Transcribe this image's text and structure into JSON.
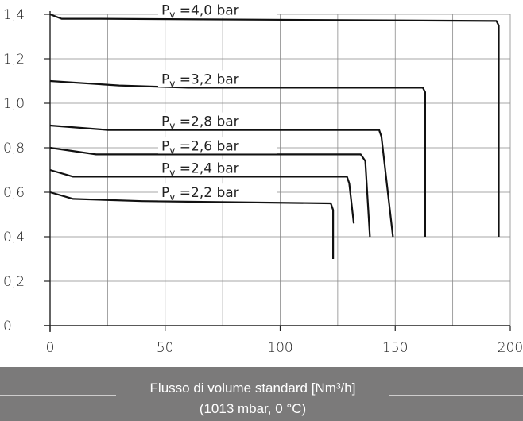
{
  "chart_data": {
    "type": "line",
    "xlabel": "Flusso di volume standard [Nm³/h]",
    "xlabel_sub": "(1013 mbar, 0 °C)",
    "ylabel": "",
    "xlim": [
      0,
      200
    ],
    "ylim": [
      0,
      1.4
    ],
    "x_ticks": [
      "0",
      "50",
      "100",
      "150",
      "200"
    ],
    "y_ticks": [
      "0",
      "0,2",
      "0,4",
      "0,6",
      "0,8",
      "1,0",
      "1,2",
      "1,4"
    ],
    "grid": true,
    "series": [
      {
        "name": "Pv =4,0 bar",
        "label": [
          "P",
          "v",
          " =4,0  bar"
        ],
        "points": [
          [
            0,
            1.4
          ],
          [
            5,
            1.38
          ],
          [
            20,
            1.38
          ],
          [
            194,
            1.37
          ],
          [
            195,
            1.35
          ],
          [
            195,
            0.4
          ]
        ]
      },
      {
        "name": "Pv =3,2 bar",
        "label": [
          "P",
          "v",
          " =3,2  bar"
        ],
        "points": [
          [
            0,
            1.1
          ],
          [
            30,
            1.08
          ],
          [
            60,
            1.07
          ],
          [
            162,
            1.07
          ],
          [
            163,
            1.05
          ],
          [
            163,
            0.4
          ]
        ]
      },
      {
        "name": "Pv =2,8 bar",
        "label": [
          "P",
          "v",
          " =2,8  bar"
        ],
        "points": [
          [
            0,
            0.9
          ],
          [
            25,
            0.88
          ],
          [
            60,
            0.88
          ],
          [
            143,
            0.88
          ],
          [
            144,
            0.85
          ],
          [
            149,
            0.4
          ]
        ]
      },
      {
        "name": "Pv =2,6 bar",
        "label": [
          "P",
          "v",
          " =2,6  bar"
        ],
        "points": [
          [
            0,
            0.8
          ],
          [
            20,
            0.77
          ],
          [
            135,
            0.77
          ],
          [
            137,
            0.74
          ],
          [
            139,
            0.4
          ]
        ]
      },
      {
        "name": "Pv =2,4 bar",
        "label": [
          "P",
          "v",
          " =2,4  bar"
        ],
        "points": [
          [
            0,
            0.7
          ],
          [
            10,
            0.67
          ],
          [
            129,
            0.67
          ],
          [
            130,
            0.64
          ],
          [
            132,
            0.46
          ]
        ]
      },
      {
        "name": "Pv =2,2 bar",
        "label": [
          "P",
          "v",
          " =2,2  bar"
        ],
        "points": [
          [
            0,
            0.6
          ],
          [
            10,
            0.57
          ],
          [
            40,
            0.56
          ],
          [
            122,
            0.55
          ],
          [
            123,
            0.52
          ],
          [
            123,
            0.3
          ]
        ]
      }
    ]
  }
}
